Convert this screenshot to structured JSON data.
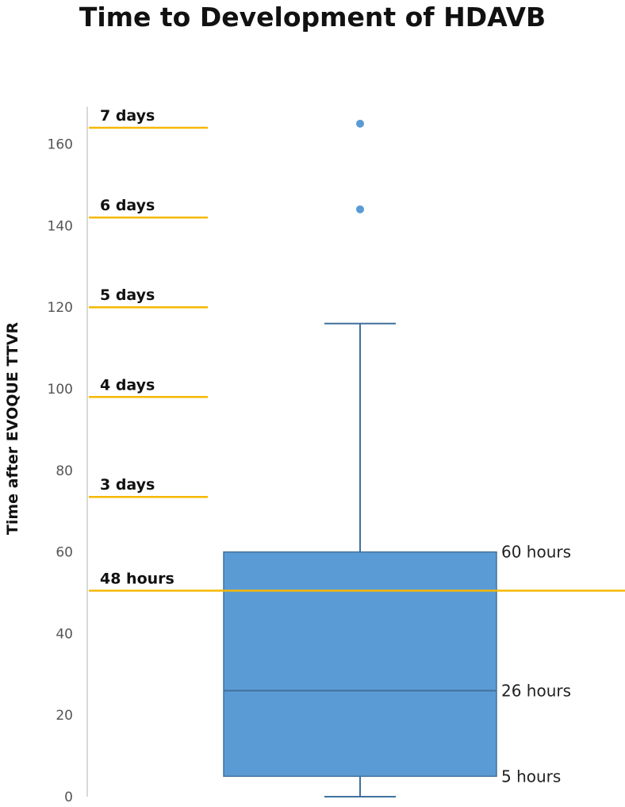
{
  "chart_data": {
    "type": "box",
    "title": "Time to Development of HDAVB",
    "ylabel": "Time after EVOQUE TTVR",
    "ylim": [
      0,
      168
    ],
    "yticks": [
      0,
      20,
      40,
      60,
      80,
      100,
      120,
      140,
      160
    ],
    "grid": false,
    "box": {
      "whisker_low": 0,
      "q1": 5,
      "median": 26,
      "q3": 60,
      "whisker_high": 116,
      "outliers": [
        144,
        165
      ],
      "color": "#5b9bd5",
      "edge_color": "#41719c"
    },
    "box_annotations": [
      {
        "label": "60 hours",
        "value": 60
      },
      {
        "label": "26 hours",
        "value": 26
      },
      {
        "label": "5 hours",
        "value": 5
      }
    ],
    "reference_lines": [
      {
        "label": "48 hours",
        "value": 50.5,
        "full_width": true
      },
      {
        "label": "3 days",
        "value": 73.5,
        "full_width": false
      },
      {
        "label": "4 days",
        "value": 98,
        "full_width": false
      },
      {
        "label": "5 days",
        "value": 120,
        "full_width": false
      },
      {
        "label": "6 days",
        "value": 142,
        "full_width": false
      },
      {
        "label": "7 days",
        "value": 164,
        "full_width": false
      }
    ],
    "reference_line_color": "#f5b800"
  }
}
